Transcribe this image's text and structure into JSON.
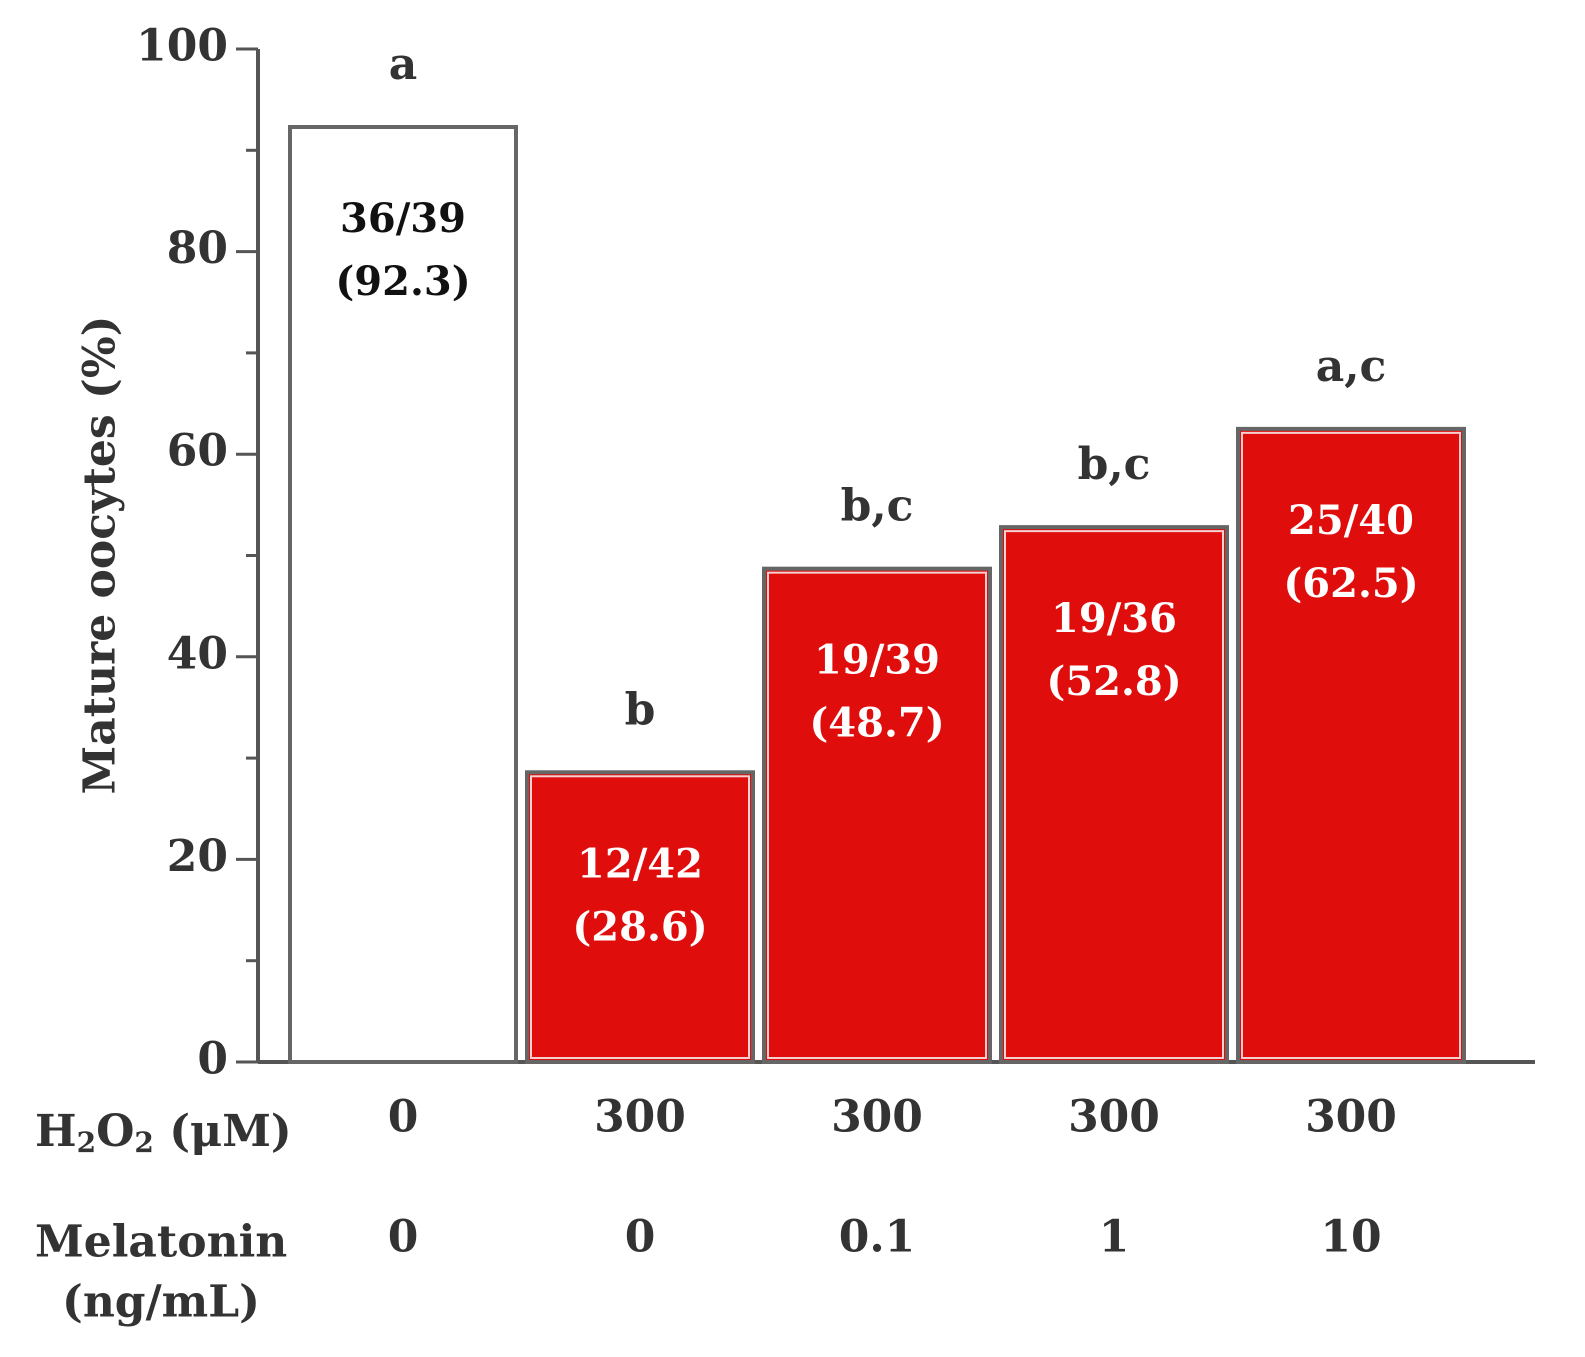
{
  "chart_data": {
    "type": "bar",
    "ylabel": "Mature oocytes (%)",
    "ylim": [
      0,
      100
    ],
    "yticks": [
      "0",
      "20",
      "40",
      "60",
      "80",
      "100"
    ],
    "grid": false,
    "row_labels": {
      "h2o2": {
        "main": "H",
        "sub1": "2",
        "mid": "O",
        "sub2": "2",
        "unit": " (μM)"
      },
      "melatonin": {
        "line1": "Melatonin",
        "line2": "(ng/mL)"
      }
    },
    "bars": [
      {
        "h2o2": "0",
        "melatonin": "0",
        "value": 92.3,
        "count": "36/39",
        "pct": "(92.3)",
        "sig": "a",
        "color": "#ffffff",
        "text_color": "#111111"
      },
      {
        "h2o2": "300",
        "melatonin": "0",
        "value": 28.6,
        "count": "12/42",
        "pct": "(28.6)",
        "sig": "b",
        "color": "#e00d0d",
        "text_color": "#ffffff"
      },
      {
        "h2o2": "300",
        "melatonin": "0.1",
        "value": 48.7,
        "count": "19/39",
        "pct": "(48.7)",
        "sig": "b,c",
        "color": "#e00d0d",
        "text_color": "#ffffff"
      },
      {
        "h2o2": "300",
        "melatonin": "1",
        "value": 52.8,
        "count": "19/36",
        "pct": "(52.8)",
        "sig": "b,c",
        "color": "#e00d0d",
        "text_color": "#ffffff"
      },
      {
        "h2o2": "300",
        "melatonin": "10",
        "value": 62.5,
        "count": "25/40",
        "pct": "(62.5)",
        "sig": "a,c",
        "color": "#e00d0d",
        "text_color": "#ffffff"
      }
    ],
    "bar_border_color": "#666666"
  }
}
